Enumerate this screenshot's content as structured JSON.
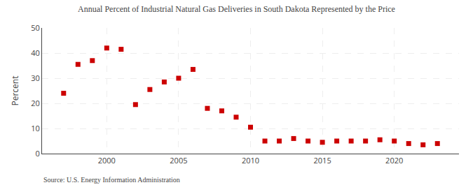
{
  "chart_data": {
    "type": "scatter",
    "title": "Annual Percent of Industrial Natural Gas Deliveries in South Dakota Represented by the Price",
    "ylabel": "Percent",
    "annotations": [
      "Source: U.S. Energy Information Administration"
    ],
    "x": [
      1997,
      1998,
      1999,
      2000,
      2001,
      2002,
      2003,
      2004,
      2005,
      2006,
      2007,
      2008,
      2009,
      2010,
      2011,
      2012,
      2013,
      2014,
      2015,
      2016,
      2017,
      2018,
      2019,
      2020,
      2021,
      2022,
      2023
    ],
    "values": [
      24,
      35.5,
      37,
      42,
      41.5,
      19.5,
      25.5,
      28.5,
      30,
      33.5,
      18,
      17,
      14.5,
      10.5,
      5,
      5,
      6,
      5,
      4.5,
      5,
      5,
      5,
      5.5,
      5,
      4,
      3.5,
      4
    ],
    "color": "#cc0000",
    "marker": "square",
    "xlim": [
      1995.5,
      2024.5
    ],
    "xticks": [
      2000,
      2005,
      2010,
      2015,
      2020
    ],
    "ylim": [
      0,
      50
    ],
    "yticks": [
      0,
      10,
      20,
      30,
      40,
      50
    ],
    "grid": true
  }
}
